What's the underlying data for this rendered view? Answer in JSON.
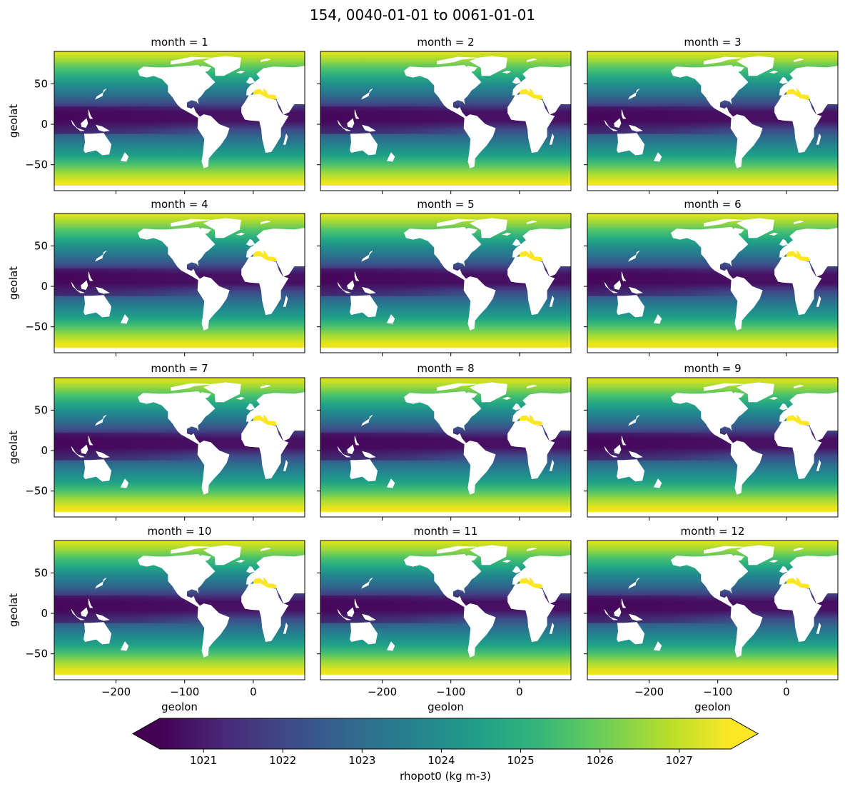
{
  "chart_data": {
    "type": "heatmap",
    "title": "154, 0040-01-01 to 0061-01-01",
    "panel_titles": [
      "month = 1",
      "month = 2",
      "month = 3",
      "month = 4",
      "month = 5",
      "month = 6",
      "month = 7",
      "month = 8",
      "month = 9",
      "month = 10",
      "month = 11",
      "month = 12"
    ],
    "xlabel": "geolon",
    "ylabel": "geolat",
    "xlim": [
      -290,
      75
    ],
    "ylim": [
      -82,
      90
    ],
    "xticks": [
      -200,
      -100,
      0
    ],
    "xtick_labels": [
      "−200",
      "−100",
      "0"
    ],
    "yticks": [
      50,
      0,
      -50
    ],
    "ytick_labels": [
      "50",
      "0",
      "−50"
    ],
    "colorbar": {
      "label": "rhopot0 (kg m-3)",
      "range": [
        1020.45,
        1027.65
      ],
      "ticks": [
        1021,
        1022,
        1023,
        1024,
        1025,
        1026,
        1027
      ],
      "tick_labels": [
        "1021",
        "1022",
        "1023",
        "1024",
        "1025",
        "1026",
        "1027"
      ],
      "extend": "both",
      "colormap": "viridis",
      "colors": [
        "#440154",
        "#482878",
        "#3e4989",
        "#31688e",
        "#26828e",
        "#1f9e89",
        "#35b779",
        "#6ece58",
        "#b5de2b",
        "#fde725"
      ]
    },
    "land_color": "#ffffff"
  }
}
